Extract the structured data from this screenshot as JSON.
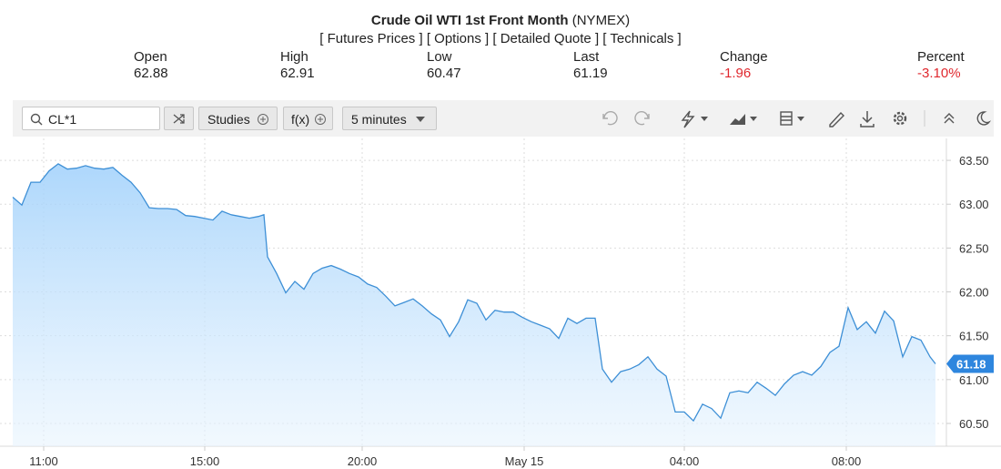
{
  "header": {
    "title": "Crude Oil WTI 1st Front Month",
    "exchange": "(NYMEX)",
    "links": [
      "[ Futures Prices ]",
      "[ Options ]",
      "[ Detailed Quote ]",
      "[ Technicals ]"
    ]
  },
  "quote": [
    {
      "label": "Open",
      "value": "62.88"
    },
    {
      "label": "High",
      "value": "62.91"
    },
    {
      "label": "Low",
      "value": "60.47"
    },
    {
      "label": "Last",
      "value": "61.19"
    },
    {
      "label": "Change",
      "value": "-1.96"
    },
    {
      "label": "Percent",
      "value": "-3.10%"
    }
  ],
  "toolbar": {
    "symbol": "CL*1",
    "studies": "Studies",
    "fx": "f(x)",
    "interval": "5 minutes"
  },
  "chart_data": {
    "type": "area",
    "color": "#3d8fd6",
    "x": [
      0,
      10,
      20,
      30,
      40,
      50,
      60,
      70,
      80,
      90,
      100,
      110,
      120,
      130,
      140,
      150,
      160,
      170,
      180,
      190,
      200,
      210,
      220,
      230,
      240,
      250,
      260,
      270,
      276,
      280,
      290,
      300,
      310,
      320,
      330,
      340,
      350,
      360,
      370,
      380,
      390,
      400,
      410,
      420,
      430,
      440,
      450,
      460,
      470,
      480,
      490,
      500,
      510,
      520,
      530,
      540,
      550,
      560,
      570,
      580,
      590,
      600,
      610,
      620,
      630,
      640,
      648,
      658,
      668,
      678,
      688,
      698,
      708,
      718,
      728,
      738,
      748,
      758,
      768,
      778,
      788,
      798,
      808,
      818,
      828,
      838,
      848,
      858,
      868,
      878,
      888,
      898,
      908,
      918,
      928,
      938,
      948,
      958,
      968,
      978,
      988,
      998,
      1008,
      1014
    ],
    "values": [
      63.08,
      62.99,
      63.25,
      63.25,
      63.38,
      63.46,
      63.4,
      63.41,
      63.44,
      63.41,
      63.4,
      63.42,
      63.33,
      63.25,
      63.13,
      62.96,
      62.95,
      62.95,
      62.94,
      62.87,
      62.86,
      62.84,
      62.82,
      62.92,
      62.88,
      62.86,
      62.84,
      62.86,
      62.88,
      62.4,
      62.21,
      61.99,
      62.12,
      62.03,
      62.21,
      62.27,
      62.3,
      62.26,
      62.21,
      62.17,
      62.09,
      62.05,
      61.95,
      61.84,
      61.88,
      61.92,
      61.84,
      61.75,
      61.68,
      61.49,
      61.66,
      61.91,
      61.87,
      61.68,
      61.79,
      61.77,
      61.77,
      61.71,
      61.66,
      61.62,
      61.58,
      61.47,
      61.7,
      61.64,
      61.7,
      61.7,
      61.12,
      60.97,
      61.09,
      61.12,
      61.17,
      61.26,
      61.12,
      61.04,
      60.63,
      60.63,
      60.53,
      60.72,
      60.67,
      60.56,
      60.85,
      60.87,
      60.85,
      60.97,
      60.9,
      60.82,
      60.95,
      61.05,
      61.09,
      61.05,
      61.15,
      61.31,
      61.38,
      61.82,
      61.57,
      61.66,
      61.53,
      61.78,
      61.67,
      61.26,
      61.49,
      61.45,
      61.26,
      61.18
    ],
    "last_value": 61.18,
    "xlim": [
      0,
      1026
    ],
    "xticks": [
      {
        "value": 34,
        "label": "11:00"
      },
      {
        "value": 211,
        "label": "15:00"
      },
      {
        "value": 384,
        "label": "20:00"
      },
      {
        "value": 562,
        "label": "May 15"
      },
      {
        "value": 738,
        "label": "04:00"
      },
      {
        "value": 916,
        "label": "08:00"
      }
    ],
    "ylim": [
      60.24,
      63.75
    ],
    "yticks": [
      {
        "value": 60.5,
        "label": "60.50"
      },
      {
        "value": 61,
        "label": "61.00"
      },
      {
        "value": 61.5,
        "label": "61.50"
      },
      {
        "value": 62,
        "label": "62.00"
      },
      {
        "value": 62.5,
        "label": "62.50"
      },
      {
        "value": 63,
        "label": "63.00"
      },
      {
        "value": 63.5,
        "label": "63.50"
      }
    ],
    "grid": true
  }
}
